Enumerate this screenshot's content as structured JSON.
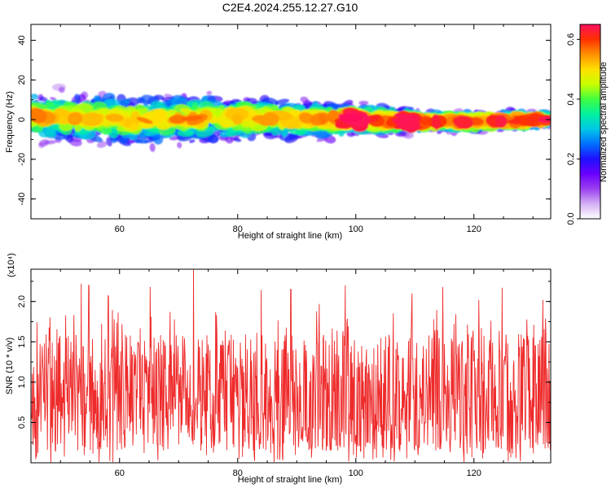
{
  "figure_title": "C2E4.2024.255.12.27.G10",
  "colorbar": {
    "label": "Normalized spectral amplitude",
    "ticks": [
      0.0,
      0.2,
      0.4,
      0.6
    ],
    "tick_labels": [
      "0.0",
      "0.2",
      "0.4",
      "0.6"
    ],
    "range": [
      0,
      0.65
    ],
    "stops": [
      "#ffffff",
      "#d4b0f5",
      "#9a40ee",
      "#6a00ff",
      "#2010ff",
      "#0070ff",
      "#00c8e6",
      "#00f0a0",
      "#40ff40",
      "#c8ff00",
      "#ffe000",
      "#ff9000",
      "#ff3000",
      "#ff1060"
    ]
  },
  "chart_data": [
    {
      "type": "heatmap",
      "title": "",
      "xlabel": "Height of straight line (km)",
      "ylabel": "Frequency (Hz)",
      "xlim": [
        45,
        133
      ],
      "ylim": [
        -50,
        48
      ],
      "xticks": [
        60,
        80,
        100,
        120
      ],
      "yticks": [
        -40,
        -20,
        0,
        20,
        40
      ],
      "xtick_labels": [
        "60",
        "80",
        "100",
        "120"
      ],
      "ytick_labels": [
        "-40",
        "-20",
        "0",
        "20",
        "40"
      ],
      "band": {
        "center_hz": [
          [
            45,
            2
          ],
          [
            60,
            0
          ],
          [
            80,
            1
          ],
          [
            95,
            0
          ],
          [
            100,
            0
          ],
          [
            110,
            -1
          ],
          [
            120,
            -1
          ],
          [
            133,
            0
          ]
        ],
        "halfwidth_hz": [
          [
            45,
            18
          ],
          [
            60,
            18
          ],
          [
            80,
            17
          ],
          [
            95,
            13
          ],
          [
            100,
            11
          ],
          [
            110,
            8
          ],
          [
            120,
            7
          ],
          [
            133,
            6
          ]
        ],
        "peak_amplitude": 0.65,
        "peak_at_km": [
          99.5,
          109
        ]
      }
    },
    {
      "type": "line",
      "title": "",
      "xlabel": "Height of straight line (km)",
      "ylabel": "SNR (10 * v/v)",
      "y_multiplier": "(x10⁴)",
      "xlim": [
        45,
        133
      ],
      "ylim": [
        0.0,
        2.4
      ],
      "xticks": [
        60,
        80,
        100,
        120
      ],
      "yticks": [
        0.5,
        1.0,
        1.5,
        2.0
      ],
      "xtick_labels": [
        "60",
        "80",
        "100",
        "120"
      ],
      "ytick_labels": [
        "0.5",
        "1.0",
        "1.5",
        "2.0"
      ],
      "color": "#ee2a2a",
      "sampling": "noisy signal, approx. 1200 samples",
      "typical_range": [
        0.15,
        1.6
      ],
      "max_value": 2.4,
      "max_at_km": 72.5,
      "peaks": [
        [
          53.5,
          2.22
        ],
        [
          54.8,
          2.2
        ],
        [
          58.1,
          2.07
        ],
        [
          65.2,
          2.18
        ],
        [
          72.5,
          2.4
        ],
        [
          84.0,
          2.14
        ],
        [
          89.0,
          2.15
        ],
        [
          93.8,
          1.97
        ],
        [
          98.2,
          2.2
        ],
        [
          109.5,
          2.1
        ],
        [
          114.7,
          2.18
        ],
        [
          120.8,
          2.02
        ],
        [
          124.8,
          2.17
        ],
        [
          131.7,
          2.02
        ]
      ]
    }
  ]
}
